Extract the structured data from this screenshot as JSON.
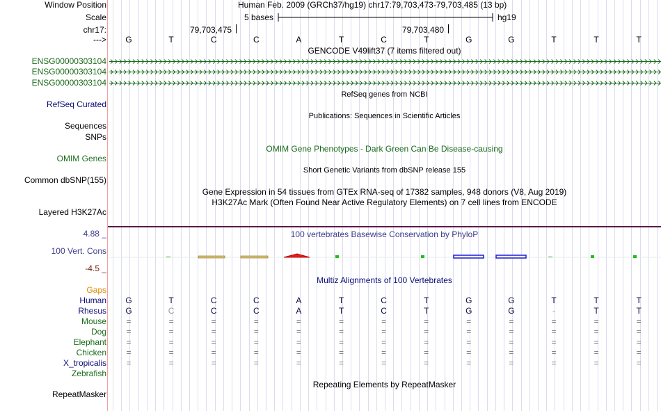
{
  "header": {
    "window_position_label": "Window Position",
    "window_position_value": "Human Feb. 2009 (GRCh37/hg19)   chr17:79,703,473-79,703,485 (13 bp)",
    "scale_label": "Scale",
    "scale_text": "5 bases",
    "scale_assembly": "hg19",
    "chrom_label": "chr17:",
    "coord_1": "79,703,475",
    "coord_2": "79,703,480",
    "arrow_label": "--->"
  },
  "sequence": [
    "G",
    "T",
    "C",
    "C",
    "A",
    "T",
    "C",
    "T",
    "G",
    "G",
    "T",
    "T",
    "T"
  ],
  "tracks": {
    "gencode_title": "GENCODE V49lift37 (7 items filtered out)",
    "gencode_items": [
      "ENSG00000303104",
      "ENSG00000303104",
      "ENSG00000303104"
    ],
    "refseq_title": "RefSeq genes from NCBI",
    "refseq_label": "RefSeq Curated",
    "pubs_title": "Publications: Sequences in Scientific Articles",
    "sequences_label": "Sequences",
    "snps_label": "SNPs",
    "omim_title": "OMIM Gene Phenotypes - Dark Green Can Be Disease-causing",
    "omim_label": "OMIM Genes",
    "dbsnp_title": "Short Genetic Variants from dbSNP release 155",
    "dbsnp_label": "Common dbSNP(155)",
    "gtex_title": "Gene Expression in 54 tissues from GTEx RNA-seq of 17382 samples, 948 donors (V8, Aug 2019)",
    "h3k27_title": "H3K27Ac Mark (Often Found Near Active Regulatory Elements) on 7 cell lines from ENCODE",
    "h3k27_label": "Layered H3K27Ac",
    "phylop_title": "100 vertebrates Basewise Conservation by PhyloP",
    "phylop_label": "100 Vert. Cons",
    "phylop_max": "4.88 _",
    "phylop_min": "-4.5 _",
    "multiz_title": "Multiz Alignments of 100 Vertebrates",
    "gaps_label": "Gaps",
    "repeat_title": "Repeating Elements by RepeatMasker",
    "repeat_label": "RepeatMasker"
  },
  "alignment": [
    {
      "species": "Human",
      "bases": [
        "G",
        "T",
        "C",
        "C",
        "A",
        "T",
        "C",
        "T",
        "G",
        "G",
        "T",
        "T",
        "T"
      ]
    },
    {
      "species": "Rhesus",
      "bases": [
        "G",
        "C",
        "C",
        "C",
        "A",
        "T",
        "C",
        "T",
        "G",
        "G",
        "-",
        "T",
        "T"
      ]
    },
    {
      "species": "Mouse",
      "bases": [
        "=",
        "=",
        "=",
        "=",
        "=",
        "=",
        "=",
        "=",
        "=",
        "=",
        "=",
        "=",
        "="
      ]
    },
    {
      "species": "Dog",
      "bases": [
        "=",
        "=",
        "=",
        "=",
        "=",
        "=",
        "=",
        "=",
        "=",
        "=",
        "=",
        "=",
        "="
      ]
    },
    {
      "species": "Elephant",
      "bases": [
        "=",
        "=",
        "=",
        "=",
        "=",
        "=",
        "=",
        "=",
        "=",
        "=",
        "=",
        "=",
        "="
      ]
    },
    {
      "species": "Chicken",
      "bases": [
        "=",
        "=",
        "=",
        "=",
        "=",
        "=",
        "=",
        "=",
        "=",
        "=",
        "=",
        "=",
        "="
      ]
    },
    {
      "species": "X_tropicalis",
      "bases": [
        "=",
        "=",
        "=",
        "=",
        "=",
        "=",
        "=",
        "=",
        "=",
        "=",
        "=",
        "=",
        "="
      ]
    },
    {
      "species": "Zebrafish",
      "bases": []
    }
  ],
  "colors": {
    "gencode": "#1b6b1b",
    "refseq": "#0c0c78",
    "omim": "#1a6b1a",
    "phylop": "#3c3c8c",
    "gaps": "#e08a00",
    "separator": "#5a1a4a"
  }
}
